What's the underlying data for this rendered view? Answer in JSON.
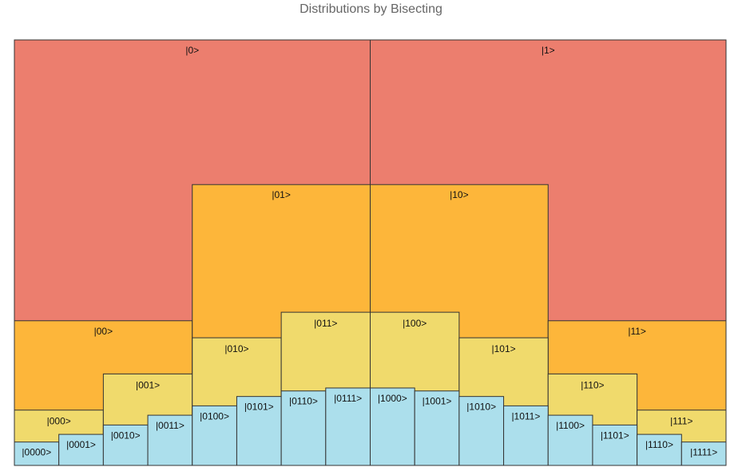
{
  "chart_data": {
    "type": "treemap",
    "title": "Distributions by Bisecting",
    "y_range": [
      0,
      1
    ],
    "colors": {
      "level1": "#ec7e6e",
      "level2": "#fdb63a",
      "level3": "#f0da6c",
      "level4": "#acdfec"
    },
    "levels": [
      {
        "depth": 1,
        "states": [
          {
            "label": "|0>",
            "value": 1.0
          },
          {
            "label": "|1>",
            "value": 1.0
          }
        ]
      },
      {
        "depth": 2,
        "states": [
          {
            "label": "|00>",
            "value": 0.34
          },
          {
            "label": "|01>",
            "value": 0.66
          },
          {
            "label": "|10>",
            "value": 0.66
          },
          {
            "label": "|11>",
            "value": 0.34
          }
        ]
      },
      {
        "depth": 3,
        "states": [
          {
            "label": "|000>",
            "value": 0.13
          },
          {
            "label": "|001>",
            "value": 0.215
          },
          {
            "label": "|010>",
            "value": 0.3
          },
          {
            "label": "|011>",
            "value": 0.36
          },
          {
            "label": "|100>",
            "value": 0.36
          },
          {
            "label": "|101>",
            "value": 0.3
          },
          {
            "label": "|110>",
            "value": 0.215
          },
          {
            "label": "|111>",
            "value": 0.13
          }
        ]
      },
      {
        "depth": 4,
        "states": [
          {
            "label": "|0000>",
            "value": 0.055
          },
          {
            "label": "|0001>",
            "value": 0.073
          },
          {
            "label": "|0010>",
            "value": 0.095
          },
          {
            "label": "|0011>",
            "value": 0.118
          },
          {
            "label": "|0100>",
            "value": 0.14
          },
          {
            "label": "|0101>",
            "value": 0.162
          },
          {
            "label": "|0110>",
            "value": 0.175
          },
          {
            "label": "|0111>",
            "value": 0.182
          },
          {
            "label": "|1000>",
            "value": 0.182
          },
          {
            "label": "|1001>",
            "value": 0.175
          },
          {
            "label": "|1010>",
            "value": 0.162
          },
          {
            "label": "|1011>",
            "value": 0.14
          },
          {
            "label": "|1100>",
            "value": 0.118
          },
          {
            "label": "|1101>",
            "value": 0.095
          },
          {
            "label": "|1110>",
            "value": 0.073
          },
          {
            "label": "|1111>",
            "value": 0.055
          }
        ]
      }
    ]
  }
}
